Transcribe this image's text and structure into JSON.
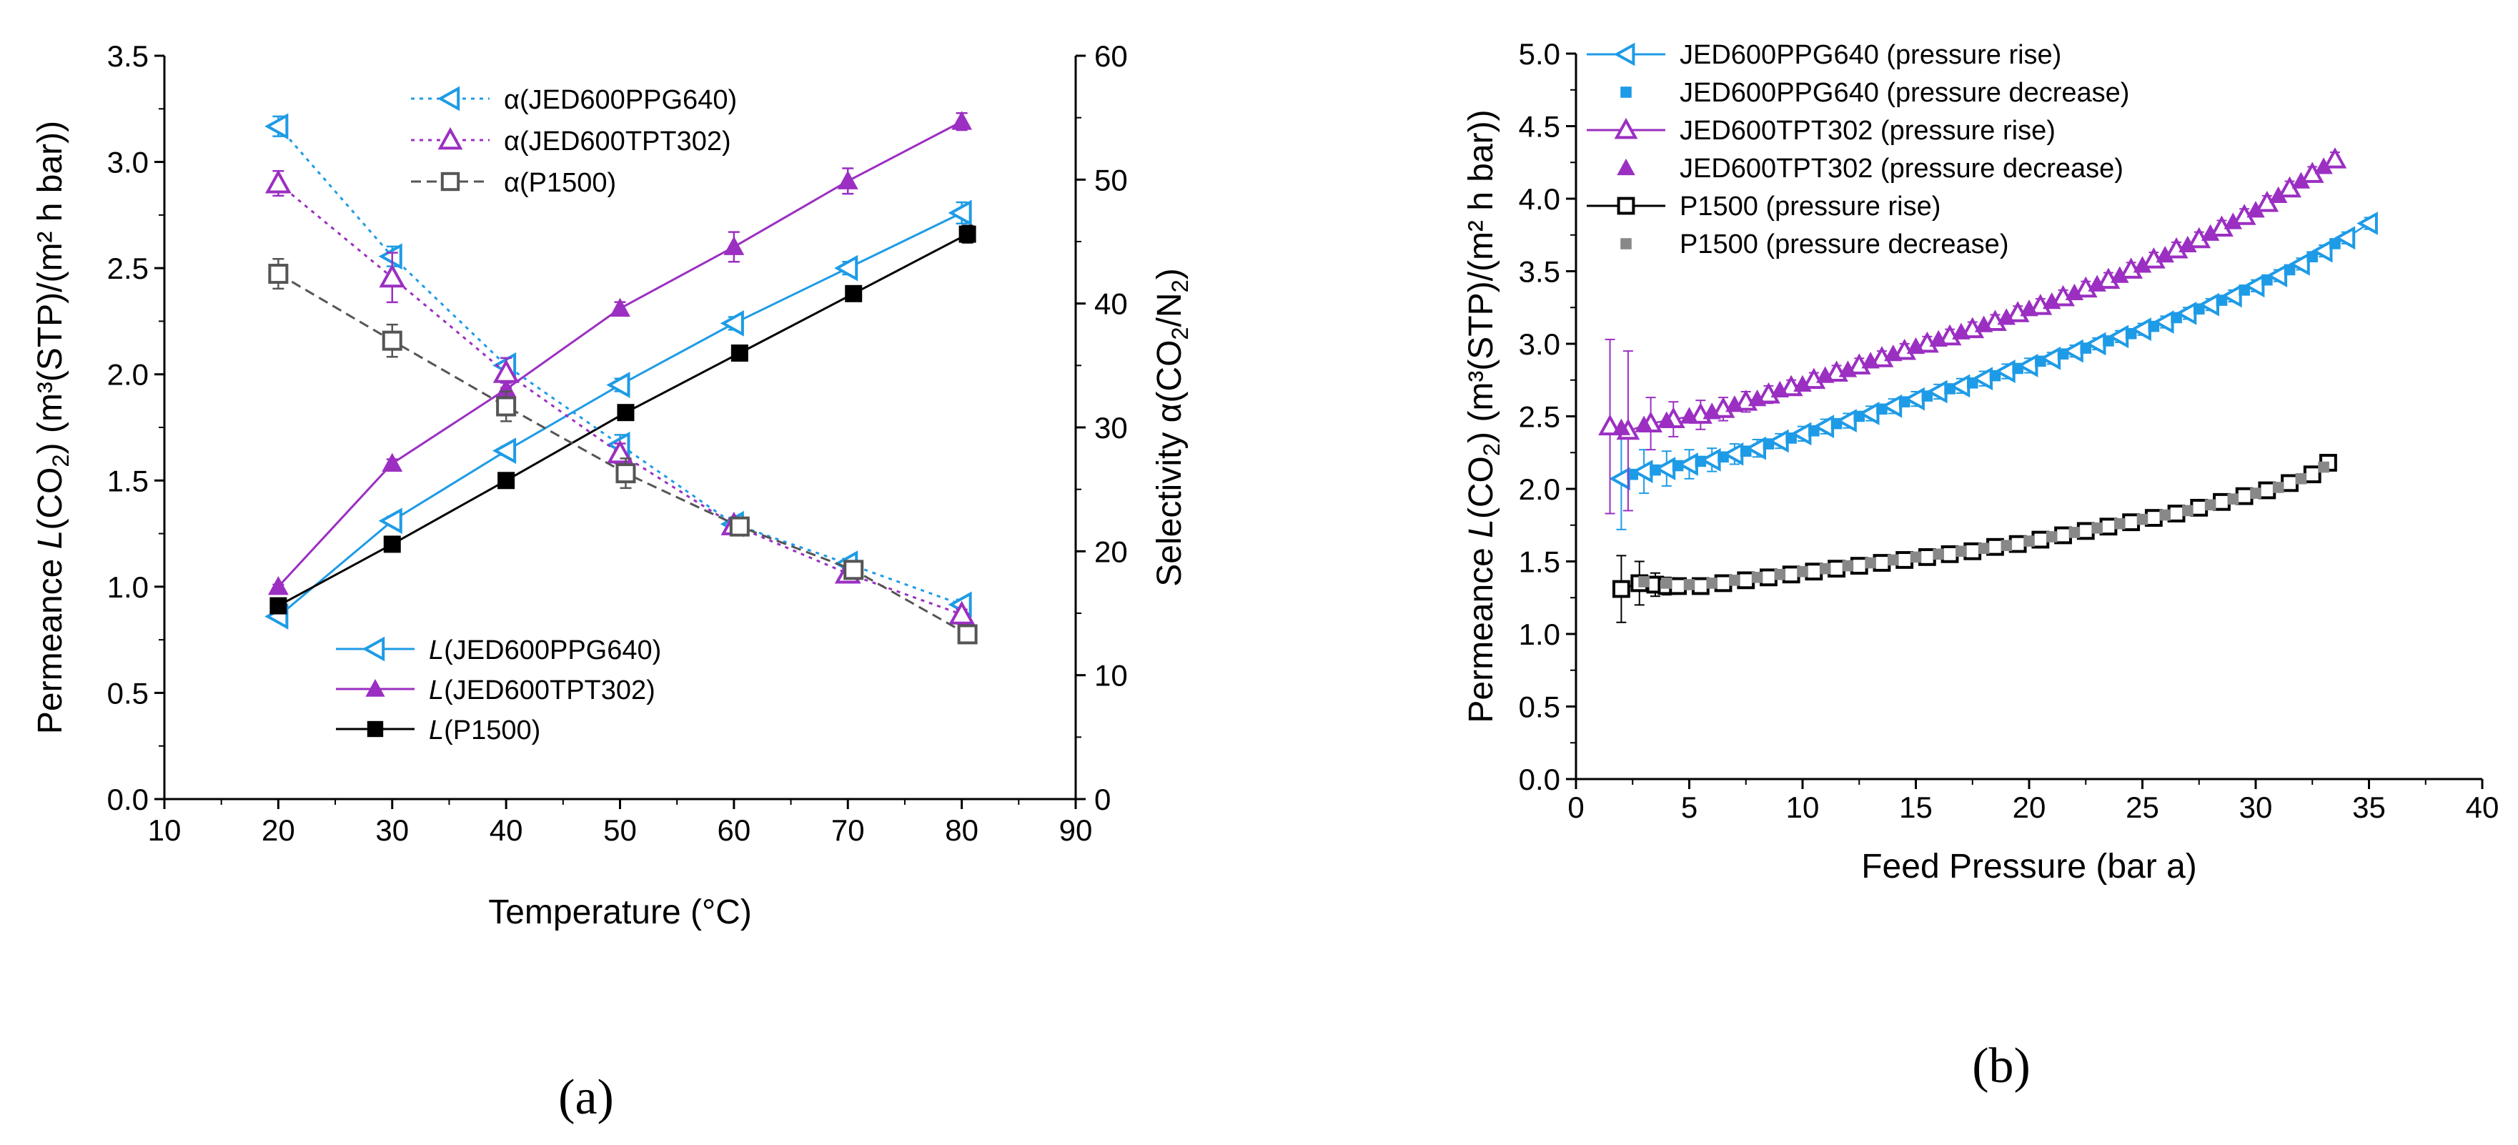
{
  "chart_data": [
    {
      "panel": "(a)",
      "type": "line",
      "xlabel": "Temperature (°C)",
      "ylabel_left": "Permeance L(CO2) (m³(STP)/(m² h bar))",
      "ylabel_right": "Selectivity α(CO2/N2)",
      "xlim": [
        10,
        90
      ],
      "ylim_left": [
        0,
        3.5
      ],
      "ylim_right": [
        0,
        60
      ],
      "x_ticks": [
        10,
        20,
        30,
        40,
        50,
        60,
        70,
        80,
        90
      ],
      "y_ticks_left": [
        0.0,
        0.5,
        1.0,
        1.5,
        2.0,
        2.5,
        3.0,
        3.5
      ],
      "y_ticks_right": [
        0,
        10,
        20,
        30,
        40,
        50,
        60
      ],
      "legend_top": [
        "α(JED600PPG640)",
        "α(JED600TPT302)",
        "α(P1500)"
      ],
      "legend_bottom": [
        "L(JED600PPG640)",
        "L(JED600TPT302)",
        "L(P1500)"
      ],
      "series": [
        {
          "name": "L(JED600PPG640)",
          "axis": "left",
          "color": "#1E9BE6",
          "marker": "tri-left-open",
          "dash": "solid",
          "x": [
            20,
            30,
            40,
            50,
            60,
            70,
            80
          ],
          "values": [
            0.86,
            1.31,
            1.64,
            1.95,
            2.24,
            2.5,
            2.76
          ],
          "err": [
            0.01,
            0.02,
            0.02,
            0.03,
            0.03,
            0.03,
            0.05
          ]
        },
        {
          "name": "L(JED600TPT302)",
          "axis": "left",
          "color": "#9B2FC2",
          "marker": "tri-up-filled",
          "dash": "solid",
          "x": [
            20,
            30,
            40,
            50,
            60,
            70,
            80
          ],
          "values": [
            1.0,
            1.58,
            1.93,
            2.31,
            2.6,
            2.91,
            3.19
          ],
          "err": [
            0.01,
            0.02,
            0.03,
            0.03,
            0.07,
            0.06,
            0.04
          ]
        },
        {
          "name": "L(P1500)",
          "axis": "left",
          "color": "#000000",
          "marker": "square-filled",
          "dash": "solid",
          "x": [
            20,
            30,
            40,
            50.5,
            60.5,
            70.5,
            80.5
          ],
          "values": [
            0.91,
            1.2,
            1.5,
            1.82,
            2.1,
            2.38,
            2.66
          ],
          "err": [
            0.01,
            0.01,
            0.01,
            0.02,
            0.02,
            0.03,
            0.04
          ]
        },
        {
          "name": "α(JED600PPG640)",
          "axis": "right",
          "color": "#1E9BE6",
          "marker": "tri-left-open",
          "dash": "dot",
          "x": [
            20,
            30,
            40,
            50,
            60,
            70,
            80
          ],
          "values": [
            54.3,
            43.8,
            35.0,
            28.6,
            22.2,
            19.0,
            15.7
          ],
          "err": [
            0.8,
            0.8,
            0.6,
            0.8,
            0.5,
            0.4,
            0.4
          ]
        },
        {
          "name": "α(JED600TPT302)",
          "axis": "right",
          "color": "#9B2FC2",
          "marker": "tri-up-open",
          "dash": "dot",
          "x": [
            20,
            30,
            40,
            50,
            60,
            70,
            80
          ],
          "values": [
            49.7,
            42.1,
            34.4,
            27.9,
            22.1,
            18.2,
            14.9
          ],
          "err": [
            1.0,
            2.0,
            1.2,
            0.8,
            0.5,
            0.4,
            0.4
          ]
        },
        {
          "name": "α(P1500)",
          "axis": "right",
          "color": "#555555",
          "marker": "square-open",
          "dash": "dash",
          "x": [
            20,
            30,
            40,
            50.5,
            60.5,
            70.5,
            80.5
          ],
          "values": [
            42.4,
            37.0,
            31.7,
            26.3,
            22.0,
            18.5,
            13.3
          ],
          "err": [
            1.2,
            1.3,
            1.2,
            1.2,
            0.5,
            0.4,
            0.3
          ]
        }
      ]
    },
    {
      "panel": "(b)",
      "type": "scatter",
      "xlabel": "Feed Pressure (bar a)",
      "ylabel": "Permeance L(CO2) (m³(STP)/(m² h bar))",
      "xlim": [
        0,
        40
      ],
      "ylim": [
        0,
        5
      ],
      "x_ticks": [
        0,
        5,
        10,
        15,
        20,
        25,
        30,
        35,
        40
      ],
      "y_ticks": [
        0.0,
        0.5,
        1.0,
        1.5,
        2.0,
        2.5,
        3.0,
        3.5,
        4.0,
        4.5,
        5.0
      ],
      "legend": [
        "JED600PPG640 (pressure rise)",
        "JED600PPG640 (pressure decrease)",
        "JED600TPT302 (pressure rise)",
        "JED600TPT302 (pressure decrease)",
        "P1500 (pressure rise)",
        "P1500 (pressure decrease)"
      ],
      "series": [
        {
          "name": "JED600PPG640 (pressure rise)",
          "color": "#1E9BE6",
          "marker": "tri-left-open",
          "line": true,
          "x": [
            2,
            3,
            4,
            5,
            6,
            7,
            8,
            9,
            10,
            11,
            12,
            13,
            14,
            15,
            16,
            17,
            18,
            19,
            20,
            21,
            22,
            23,
            24,
            25,
            26,
            27,
            28,
            29,
            30,
            31,
            32,
            33,
            34,
            35
          ],
          "values": [
            2.07,
            2.12,
            2.14,
            2.17,
            2.2,
            2.24,
            2.28,
            2.33,
            2.38,
            2.43,
            2.47,
            2.52,
            2.57,
            2.62,
            2.67,
            2.71,
            2.76,
            2.81,
            2.85,
            2.9,
            2.95,
            3.0,
            3.05,
            3.1,
            3.15,
            3.21,
            3.27,
            3.33,
            3.4,
            3.47,
            3.55,
            3.64,
            3.73,
            3.83
          ],
          "err": [
            0.35,
            0.15,
            0.12,
            0.1,
            0.08,
            0.07,
            0.06,
            0.05,
            0.05,
            0.05,
            0.05,
            0.05,
            0.05,
            0.05,
            0.05,
            0.05,
            0.05,
            0.05,
            0.05,
            0.04,
            0.04,
            0.04,
            0.04,
            0.04,
            0.04,
            0.04,
            0.04,
            0.04,
            0.04,
            0.04,
            0.04,
            0.04,
            0.04,
            0.04
          ]
        },
        {
          "name": "JED600PPG640 (pressure decrease)",
          "color": "#1E9BE6",
          "marker": "square-filled-small",
          "line": false,
          "x": [
            2.5,
            3.5,
            4.5,
            5.5,
            6.5,
            7.5,
            8.5,
            9.5,
            10.5,
            11.5,
            12.5,
            13.5,
            14.5,
            15.5,
            16.5,
            17.5,
            18.5,
            19.5,
            20.5,
            21.5,
            22.5,
            23.5,
            24.5,
            25.5,
            26.5,
            27.5,
            28.5,
            29.5,
            30.5,
            31.5,
            32.5,
            33.5
          ],
          "values": [
            2.1,
            2.13,
            2.16,
            2.19,
            2.22,
            2.26,
            2.31,
            2.35,
            2.4,
            2.45,
            2.5,
            2.55,
            2.6,
            2.64,
            2.69,
            2.73,
            2.78,
            2.83,
            2.88,
            2.93,
            2.97,
            3.02,
            3.07,
            3.12,
            3.18,
            3.24,
            3.3,
            3.37,
            3.44,
            3.51,
            3.6,
            3.69
          ]
        },
        {
          "name": "JED600TPT302 (pressure rise)",
          "color": "#9B2FC2",
          "marker": "tri-up-open",
          "line": true,
          "x": [
            1.5,
            2.3,
            3.3,
            4.3,
            5.5,
            6.5,
            7.5,
            8.5,
            9.5,
            10.5,
            11.5,
            12.5,
            13.5,
            14.5,
            15.5,
            16.5,
            17.5,
            18.5,
            19.5,
            20.5,
            21.5,
            22.5,
            23.5,
            24.5,
            25.5,
            26.5,
            27.5,
            28.5,
            29.5,
            30.5,
            31.5,
            32.5,
            33.5
          ],
          "values": [
            2.43,
            2.4,
            2.45,
            2.48,
            2.51,
            2.55,
            2.6,
            2.65,
            2.7,
            2.75,
            2.8,
            2.85,
            2.9,
            2.95,
            3.0,
            3.05,
            3.1,
            3.15,
            3.21,
            3.26,
            3.32,
            3.38,
            3.44,
            3.51,
            3.58,
            3.65,
            3.72,
            3.8,
            3.88,
            3.97,
            4.07,
            4.17,
            4.27
          ],
          "err": [
            0.6,
            0.55,
            0.18,
            0.12,
            0.1,
            0.08,
            0.07,
            0.06,
            0.05,
            0.05,
            0.05,
            0.05,
            0.05,
            0.05,
            0.05,
            0.05,
            0.05,
            0.05,
            0.05,
            0.05,
            0.05,
            0.05,
            0.05,
            0.05,
            0.05,
            0.05,
            0.05,
            0.05,
            0.05,
            0.05,
            0.05,
            0.05,
            0.05
          ]
        },
        {
          "name": "JED600TPT302 (pressure decrease)",
          "color": "#9B2FC2",
          "marker": "tri-up-filled",
          "line": false,
          "x": [
            2.0,
            3.0,
            4.0,
            5.0,
            6.0,
            7.0,
            8.0,
            9.0,
            10.0,
            11.0,
            12.0,
            13.0,
            14.0,
            15.0,
            16.0,
            17.0,
            18.0,
            19.0,
            20.0,
            21.0,
            22.0,
            23.0,
            24.0,
            25.0,
            26.0,
            27.0,
            28.0,
            29.0,
            30.0,
            31.0,
            32.0,
            33.0
          ],
          "values": [
            2.42,
            2.44,
            2.47,
            2.5,
            2.53,
            2.58,
            2.62,
            2.68,
            2.72,
            2.78,
            2.82,
            2.88,
            2.93,
            2.98,
            3.03,
            3.08,
            3.13,
            3.18,
            3.24,
            3.29,
            3.35,
            3.41,
            3.47,
            3.54,
            3.61,
            3.68,
            3.76,
            3.84,
            3.92,
            4.02,
            4.12,
            4.22
          ]
        },
        {
          "name": "P1500 (pressure rise)",
          "color": "#000000",
          "marker": "square-open",
          "line": true,
          "x": [
            2.0,
            2.8,
            3.5,
            4.0,
            4.5,
            5.5,
            6.5,
            7.5,
            8.5,
            9.5,
            10.5,
            11.5,
            12.5,
            13.5,
            14.5,
            15.5,
            16.5,
            17.5,
            18.5,
            19.5,
            20.5,
            21.5,
            22.5,
            23.5,
            24.5,
            25.5,
            26.5,
            27.5,
            28.5,
            29.5,
            30.5,
            31.5,
            32.5,
            33.2
          ],
          "values": [
            1.31,
            1.35,
            1.34,
            1.33,
            1.33,
            1.33,
            1.35,
            1.37,
            1.39,
            1.41,
            1.43,
            1.45,
            1.47,
            1.49,
            1.51,
            1.53,
            1.55,
            1.57,
            1.6,
            1.62,
            1.65,
            1.68,
            1.71,
            1.74,
            1.77,
            1.8,
            1.83,
            1.87,
            1.91,
            1.95,
            1.99,
            2.04,
            2.1,
            2.18
          ],
          "err": [
            0.23,
            0.15,
            0.08,
            0.06,
            0.05,
            0.03,
            0.02,
            0.02,
            0.02,
            0.02,
            0.02,
            0.02,
            0.02,
            0.02,
            0.02,
            0.02,
            0.02,
            0.02,
            0.02,
            0.02,
            0.02,
            0.02,
            0.02,
            0.02,
            0.02,
            0.02,
            0.02,
            0.02,
            0.02,
            0.02,
            0.02,
            0.02,
            0.02,
            0.02
          ]
        },
        {
          "name": "P1500 (pressure decrease)",
          "color": "#888888",
          "marker": "square-filled-small",
          "line": false,
          "x": [
            3.0,
            4.0,
            5.0,
            6.0,
            7.0,
            8.0,
            9.0,
            10.0,
            11.0,
            12.0,
            13.0,
            14.0,
            15.0,
            16.0,
            17.0,
            18.0,
            19.0,
            20.0,
            21.0,
            22.0,
            23.0,
            24.0,
            25.0,
            26.0,
            27.0,
            28.0,
            29.0,
            30.0,
            31.0,
            32.0,
            33.0
          ],
          "values": [
            1.36,
            1.35,
            1.34,
            1.35,
            1.37,
            1.39,
            1.41,
            1.43,
            1.45,
            1.47,
            1.49,
            1.51,
            1.53,
            1.55,
            1.57,
            1.59,
            1.61,
            1.64,
            1.67,
            1.7,
            1.73,
            1.76,
            1.79,
            1.82,
            1.85,
            1.89,
            1.93,
            1.97,
            2.01,
            2.07,
            2.15
          ]
        }
      ]
    }
  ]
}
